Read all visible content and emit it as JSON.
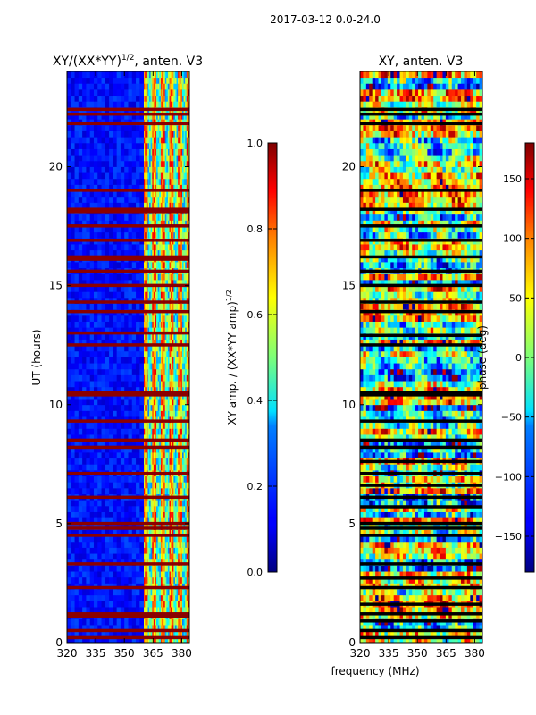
{
  "figure": {
    "suptitle": "2017-03-12 0.0-24.0",
    "xlabel": "frequency (MHz)"
  },
  "chart_data": [
    {
      "type": "heatmap",
      "title_text": "XY/(XX*YY)",
      "title_sup": "1/2",
      "title_suffix": ", anten. V3",
      "ylabel": "UT (hours)",
      "xlim": [
        320,
        384
      ],
      "ylim": [
        0,
        24
      ],
      "xticks": [
        320,
        335,
        350,
        365,
        380
      ],
      "yticks": [
        0,
        5,
        10,
        15,
        20
      ],
      "value_range": [
        0.0,
        1.0
      ],
      "colormap": "jet",
      "colorbar": {
        "label_text": "XY amp. / (XX*YY amp)",
        "label_sup": "1/2",
        "ticks": [
          "0.0",
          "0.2",
          "0.4",
          "0.6",
          "0.8",
          "1.0"
        ],
        "tick_values": [
          0.0,
          0.2,
          0.4,
          0.6,
          0.8,
          1.0
        ]
      },
      "flagged_hours": [
        0.2,
        0.5,
        1.1,
        1.2,
        2.3,
        3.3,
        4.5,
        4.8,
        5.0,
        6.1,
        7.1,
        8.2,
        8.5,
        9.3,
        10.4,
        10.5,
        12.5,
        13.0,
        13.9,
        14.3,
        15.0,
        15.6,
        16.1,
        16.2,
        16.9,
        17.5,
        18.1,
        18.2,
        19.0,
        21.8,
        22.2,
        22.4
      ],
      "bright_band_MHz": [
        360,
        384
      ]
    },
    {
      "type": "heatmap",
      "title_text": "XY, anten. V3",
      "ylabel": "",
      "xlim": [
        320,
        384
      ],
      "ylim": [
        0,
        24
      ],
      "xticks": [
        320,
        335,
        350,
        365,
        380
      ],
      "yticks": [
        0,
        5,
        10,
        15,
        20
      ],
      "value_range": [
        -180,
        180
      ],
      "colormap": "jet",
      "colorbar": {
        "label_text": "phase (deg)",
        "ticks": [
          "-150",
          "-100",
          "-50",
          "0",
          "50",
          "100",
          "150"
        ],
        "tick_values": [
          -150,
          -100,
          -50,
          0,
          50,
          100,
          150
        ]
      },
      "flagged_hours": [
        0.2,
        0.5,
        0.9,
        1.2,
        1.6,
        2.3,
        2.7,
        3.3,
        4.5,
        4.8,
        5.0,
        5.7,
        6.1,
        6.6,
        7.1,
        7.6,
        8.2,
        8.5,
        9.3,
        10.4,
        10.5,
        12.5,
        12.9,
        13.9,
        14.3,
        15.0,
        15.6,
        16.2,
        16.9,
        17.5,
        18.2,
        19.0,
        21.8,
        22.2,
        22.4
      ]
    }
  ]
}
